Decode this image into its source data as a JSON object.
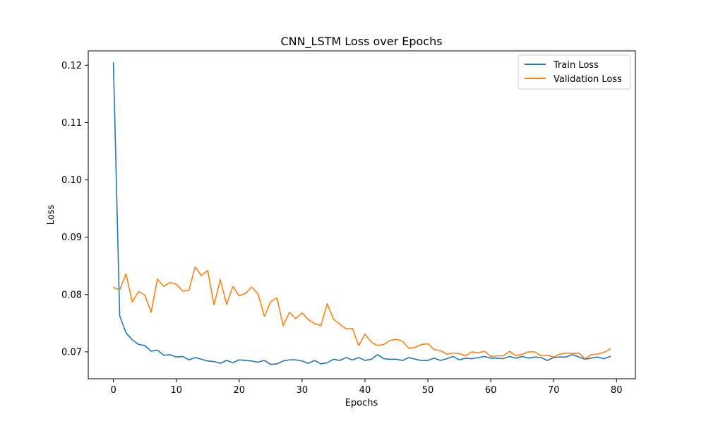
{
  "chart_data": {
    "type": "line",
    "title": "CNN_LSTM Loss over Epochs",
    "xlabel": "Epochs",
    "ylabel": "Loss",
    "xlim": [
      -4,
      83
    ],
    "ylim": [
      0.0653,
      0.1225
    ],
    "xticks": [
      0,
      10,
      20,
      30,
      40,
      50,
      60,
      70,
      80
    ],
    "yticks": [
      0.07,
      0.08,
      0.09,
      0.1,
      0.11,
      0.12
    ],
    "ytick_labels": [
      "0.07",
      "0.08",
      "0.09",
      "0.10",
      "0.11",
      "0.12"
    ],
    "grid": false,
    "legend": "top-right",
    "x": [
      0,
      1,
      2,
      3,
      4,
      5,
      6,
      7,
      8,
      9,
      10,
      11,
      12,
      13,
      14,
      15,
      16,
      17,
      18,
      19,
      20,
      21,
      22,
      23,
      24,
      25,
      26,
      27,
      28,
      29,
      30,
      31,
      32,
      33,
      34,
      35,
      36,
      37,
      38,
      39,
      40,
      41,
      42,
      43,
      44,
      45,
      46,
      47,
      48,
      49,
      50,
      51,
      52,
      53,
      54,
      55,
      56,
      57,
      58,
      59,
      60,
      61,
      62,
      63,
      64,
      65,
      66,
      67,
      68,
      69,
      70,
      71,
      72,
      73,
      74,
      75,
      76,
      77,
      78,
      79
    ],
    "series": [
      {
        "name": "Train Loss",
        "color": "#1f77b4",
        "values": [
          0.1204,
          0.0763,
          0.0733,
          0.0721,
          0.0713,
          0.0711,
          0.0701,
          0.0703,
          0.0694,
          0.0695,
          0.0691,
          0.0692,
          0.0686,
          0.069,
          0.0687,
          0.0684,
          0.0683,
          0.068,
          0.0685,
          0.0681,
          0.0686,
          0.0685,
          0.0684,
          0.0682,
          0.0685,
          0.0678,
          0.0679,
          0.0684,
          0.0686,
          0.0686,
          0.0684,
          0.068,
          0.0685,
          0.0679,
          0.0681,
          0.0687,
          0.0685,
          0.069,
          0.0686,
          0.069,
          0.0685,
          0.0687,
          0.0695,
          0.0688,
          0.0687,
          0.0687,
          0.0685,
          0.069,
          0.0687,
          0.0685,
          0.0685,
          0.0689,
          0.0685,
          0.0688,
          0.0692,
          0.0686,
          0.0689,
          0.0688,
          0.069,
          0.0692,
          0.0689,
          0.0689,
          0.0688,
          0.0692,
          0.0689,
          0.0692,
          0.0689,
          0.0691,
          0.069,
          0.0685,
          0.069,
          0.0691,
          0.0691,
          0.0695,
          0.0691,
          0.0687,
          0.0689,
          0.0691,
          0.0688,
          0.0692
        ]
      },
      {
        "name": "Validation Loss",
        "color": "#ff7f0e",
        "values": [
          0.0812,
          0.0808,
          0.0836,
          0.0787,
          0.0805,
          0.0799,
          0.0769,
          0.0827,
          0.0814,
          0.0821,
          0.0818,
          0.0806,
          0.0807,
          0.0848,
          0.0833,
          0.0842,
          0.0782,
          0.0826,
          0.0783,
          0.0814,
          0.0798,
          0.0802,
          0.0813,
          0.0801,
          0.0762,
          0.0787,
          0.0794,
          0.0746,
          0.0769,
          0.0758,
          0.0768,
          0.0756,
          0.0749,
          0.0746,
          0.0784,
          0.0757,
          0.0748,
          0.074,
          0.0741,
          0.0711,
          0.0731,
          0.0717,
          0.0711,
          0.0713,
          0.072,
          0.0722,
          0.0718,
          0.0706,
          0.0708,
          0.0713,
          0.0714,
          0.0704,
          0.0702,
          0.0696,
          0.0698,
          0.0697,
          0.0693,
          0.07,
          0.0698,
          0.0701,
          0.0692,
          0.0693,
          0.0693,
          0.0701,
          0.0693,
          0.0696,
          0.07,
          0.07,
          0.0693,
          0.0694,
          0.0691,
          0.0696,
          0.0698,
          0.0697,
          0.0698,
          0.0688,
          0.0695,
          0.0696,
          0.0699,
          0.0705
        ]
      }
    ]
  }
}
